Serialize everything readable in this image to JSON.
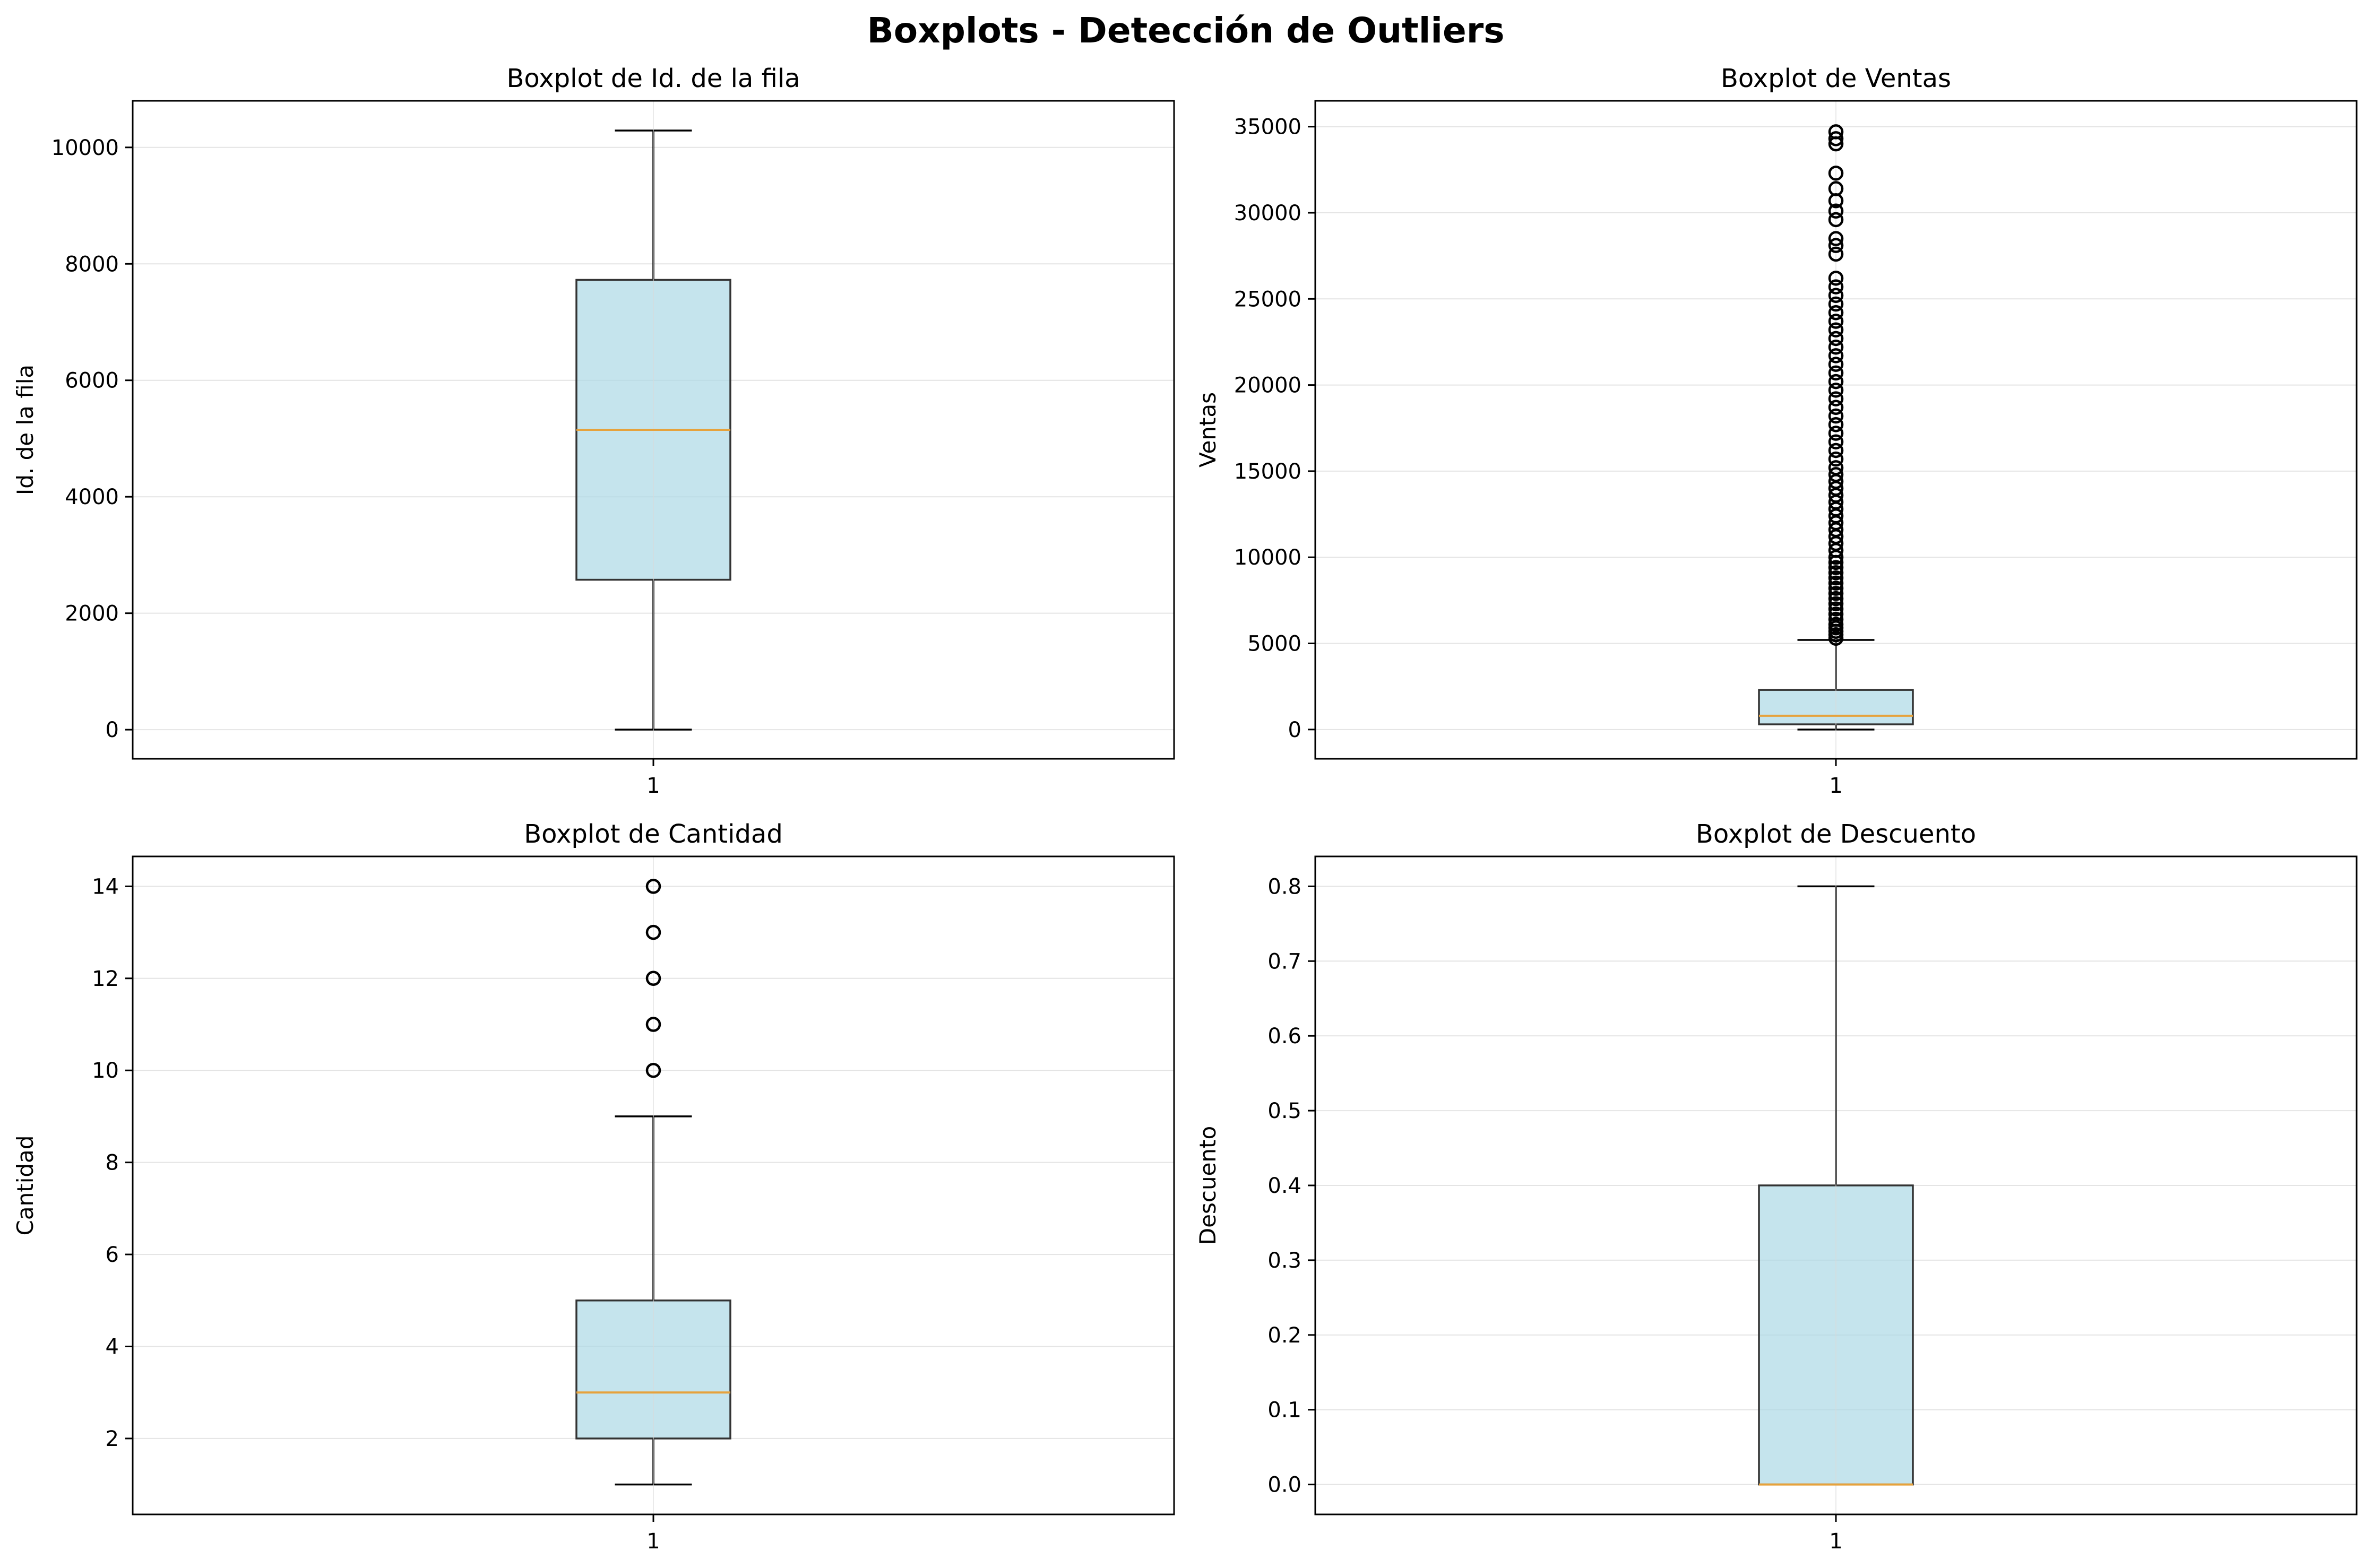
{
  "suptitle": "Boxplots - Detección de Outliers",
  "colors": {
    "box_fill": "#add8e6",
    "box_edge": "#000000",
    "median": "#e6a23c",
    "grid": "#d9d9d9",
    "outlier_edge": "#000000"
  },
  "chart_data": [
    {
      "type": "boxplot",
      "title": "Boxplot de Id. de la fila",
      "ylabel": "Id. de la fila",
      "categories": [
        "1"
      ],
      "ylim": [
        -500,
        10800
      ],
      "yticks": [
        0,
        2000,
        4000,
        6000,
        8000,
        10000
      ],
      "grid": true,
      "stats": {
        "whislo": 1,
        "q1": 2575,
        "med": 5150,
        "q3": 7725,
        "whishi": 10290
      },
      "outliers": []
    },
    {
      "type": "boxplot",
      "title": "Boxplot de Ventas",
      "ylabel": "Ventas",
      "categories": [
        "1"
      ],
      "ylim": [
        -1700,
        36500
      ],
      "yticks": [
        0,
        5000,
        10000,
        15000,
        20000,
        25000,
        30000,
        35000
      ],
      "grid": true,
      "stats": {
        "whislo": 0,
        "q1": 300,
        "med": 800,
        "q3": 2300,
        "whishi": 5200
      },
      "outliers": [
        5300,
        5500,
        5700,
        5900,
        6100,
        6400,
        6700,
        7000,
        7300,
        7600,
        7900,
        8200,
        8500,
        8800,
        9100,
        9400,
        9700,
        10000,
        10400,
        10800,
        11200,
        11600,
        12000,
        12400,
        12800,
        13200,
        13600,
        14000,
        14400,
        14800,
        15200,
        15700,
        16200,
        16700,
        17200,
        17700,
        18200,
        18700,
        19200,
        19700,
        20200,
        20700,
        21200,
        21700,
        22200,
        22700,
        23200,
        23700,
        24200,
        24700,
        25200,
        25700,
        26200,
        27600,
        28100,
        28500,
        29600,
        30100,
        30700,
        31400,
        32300,
        34000,
        34300,
        34700
      ]
    },
    {
      "type": "boxplot",
      "title": "Boxplot de Cantidad",
      "ylabel": "Cantidad",
      "categories": [
        "1"
      ],
      "ylim": [
        0.35,
        14.65
      ],
      "yticks": [
        2,
        4,
        6,
        8,
        10,
        12,
        14
      ],
      "grid": true,
      "stats": {
        "whislo": 1,
        "q1": 2,
        "med": 3,
        "q3": 5,
        "whishi": 9
      },
      "outliers": [
        10,
        11,
        12,
        13,
        14
      ]
    },
    {
      "type": "boxplot",
      "title": "Boxplot de Descuento",
      "ylabel": "Descuento",
      "categories": [
        "1"
      ],
      "ylim": [
        -0.04,
        0.84
      ],
      "yticks": [
        0.0,
        0.1,
        0.2,
        0.3,
        0.4,
        0.5,
        0.6,
        0.7,
        0.8
      ],
      "grid": true,
      "stats": {
        "whislo": 0,
        "q1": 0,
        "med": 0,
        "q3": 0.4,
        "whishi": 0.8
      },
      "outliers": []
    }
  ]
}
